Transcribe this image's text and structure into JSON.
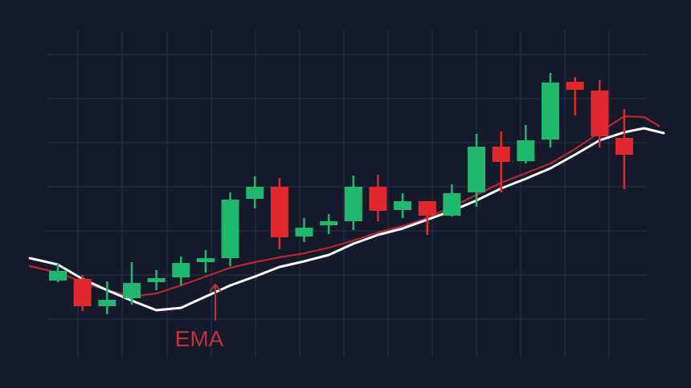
{
  "chart_data": {
    "type": "candlestick",
    "annotation": "EMA",
    "annotation_color": "#c0313a",
    "up_color": "#1fb86e",
    "down_color": "#e0282e",
    "xlim": [
      -2.35,
      25.71
    ],
    "ylim": [
      0,
      484
    ],
    "x": [
      0,
      1,
      2,
      3,
      4,
      5,
      6,
      7,
      8,
      9,
      10,
      11,
      12,
      13,
      14,
      15,
      16,
      17,
      18,
      19,
      20,
      21,
      22,
      23
    ],
    "open": [
      134,
      136,
      102,
      112,
      132,
      138,
      157,
      162,
      236,
      251,
      189,
      203,
      208,
      251,
      222,
      233,
      215,
      244,
      301,
      283,
      310,
      382,
      371,
      312
    ],
    "high": [
      156,
      141,
      133,
      157,
      147,
      164,
      172,
      244,
      264,
      262,
      212,
      217,
      265,
      266,
      243,
      233,
      254,
      317,
      320,
      328,
      393,
      388,
      384,
      348
    ],
    "low": [
      132,
      96,
      92,
      104,
      122,
      128,
      144,
      152,
      224,
      173,
      182,
      192,
      197,
      208,
      212,
      191,
      214,
      226,
      244,
      280,
      300,
      340,
      300,
      248
    ],
    "close": [
      146,
      102,
      110,
      131,
      137,
      156,
      162,
      235,
      251,
      188,
      200,
      208,
      251,
      221,
      233,
      215,
      243,
      301,
      282,
      309,
      381,
      372,
      314,
      291
    ],
    "series": [
      {
        "color": "#b8262f",
        "x": [
          -1.14,
          0,
          1,
          2,
          3,
          4,
          5,
          6,
          7,
          8,
          9,
          10,
          11,
          12,
          13,
          14,
          15,
          16,
          17,
          18,
          19,
          20,
          21,
          22,
          23,
          23.8,
          24.4
        ],
        "values": [
          152,
          144,
          132,
          122,
          114,
          118,
          128,
          139,
          150,
          157,
          163,
          168,
          175,
          184,
          194,
          202,
          212,
          226,
          241,
          256,
          268,
          280,
          298,
          319,
          339,
          338,
          327
        ]
      },
      {
        "color": "#ffffff",
        "x": [
          -1.14,
          0,
          1,
          2,
          3,
          4,
          5,
          6,
          7,
          8,
          9,
          10,
          11,
          12,
          13,
          14,
          15,
          16,
          17,
          18,
          19,
          20,
          21,
          22,
          23,
          23.8,
          24.6
        ],
        "values": [
          162,
          154,
          136,
          122,
          109,
          97,
          100,
          114,
          128,
          139,
          151,
          158,
          166,
          180,
          191,
          199,
          210,
          221,
          234,
          249,
          261,
          274,
          291,
          309,
          319,
          324,
          318
        ]
      }
    ]
  }
}
